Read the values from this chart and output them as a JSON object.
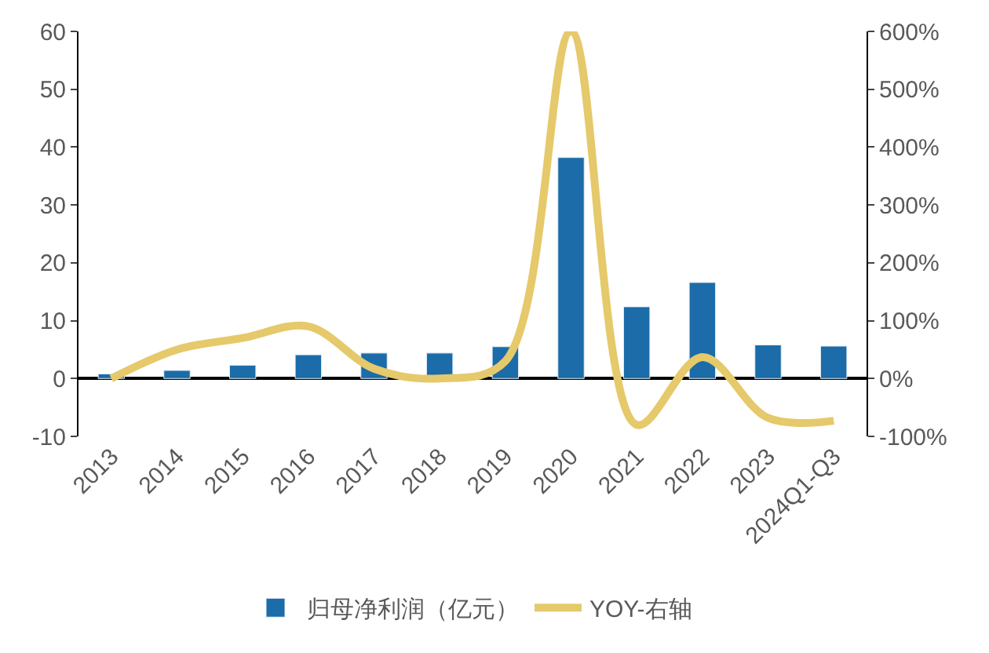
{
  "chart_data": {
    "type": "bar",
    "categories": [
      "2013",
      "2014",
      "2015",
      "2016",
      "2017",
      "2018",
      "2019",
      "2020",
      "2021",
      "2022",
      "2023",
      "2024Q1-Q3"
    ],
    "series": [
      {
        "name": "归母净利润（亿元）",
        "color": "#1b6ca8",
        "values": [
          0.8,
          1.4,
          2.3,
          4.1,
          4.4,
          4.4,
          5.5,
          38.2,
          12.4,
          16.6,
          5.8,
          5.6
        ]
      },
      {
        "name": "YOY-右轴",
        "type": "line",
        "axis": "y2",
        "color": "#e5c96a",
        "values": [
          0,
          50,
          70,
          90,
          17,
          0,
          30,
          600,
          -80,
          37,
          -68,
          -73
        ]
      }
    ],
    "ylim": [
      -10,
      60
    ],
    "yticks": [
      -10,
      0,
      10,
      20,
      30,
      40,
      50,
      60
    ],
    "y2lim": [
      -100,
      600
    ],
    "y2ticks": [
      {
        "value": -100,
        "label": "-100%"
      },
      {
        "value": 0,
        "label": "0%"
      },
      {
        "value": 100,
        "label": "100%"
      },
      {
        "value": 200,
        "label": "200%"
      },
      {
        "value": 300,
        "label": "300%"
      },
      {
        "value": 400,
        "label": "400%"
      },
      {
        "value": 500,
        "label": "500%"
      },
      {
        "value": 600,
        "label": "600%"
      }
    ],
    "legend": "bottom",
    "marker": "none"
  }
}
